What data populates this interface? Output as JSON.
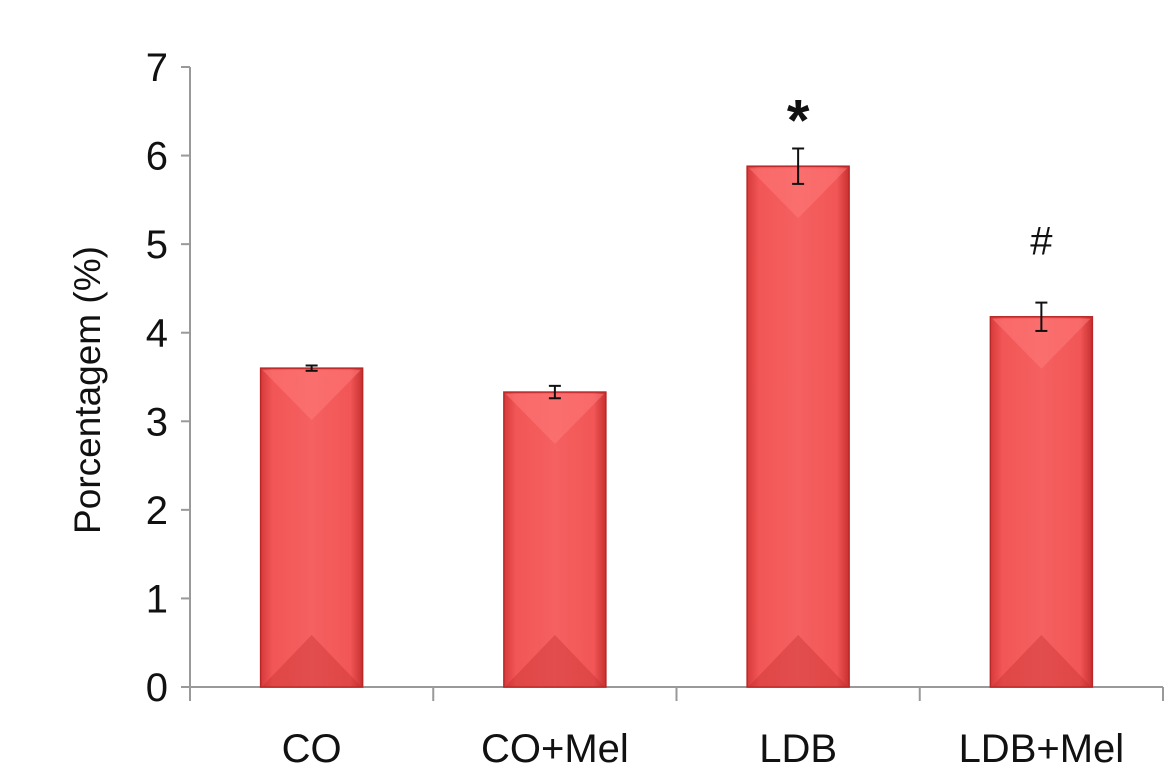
{
  "chart_data": {
    "type": "bar",
    "title": "",
    "xlabel": "",
    "ylabel": "Porcentagem (%)",
    "ylim": [
      0,
      7
    ],
    "yticks": [
      0,
      1,
      2,
      3,
      4,
      5,
      6,
      7
    ],
    "grid": false,
    "legend": "none",
    "bar_color": "#f04a4a",
    "categories": [
      "CO",
      "CO+Mel",
      "LDB",
      "LDB+Mel"
    ],
    "series": [
      {
        "values": [
          3.6,
          3.33,
          5.88,
          4.18
        ],
        "errors": [
          0.03,
          0.07,
          0.2,
          0.16
        ]
      }
    ],
    "annotations": [
      {
        "category": "LDB",
        "text": "*"
      },
      {
        "category": "LDB+Mel",
        "text": "#"
      }
    ]
  }
}
